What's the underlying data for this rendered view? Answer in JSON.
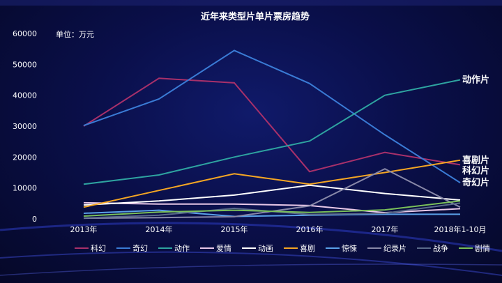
{
  "chart_data": {
    "type": "line",
    "title": "近年来类型片单片票房趋势",
    "unit_label": "单位：万元",
    "categories": [
      "2013年",
      "2014年",
      "2015年",
      "2016年",
      "2017年",
      "2018年1-10月"
    ],
    "ylim": [
      0,
      60000
    ],
    "yticks": [
      0,
      10000,
      20000,
      30000,
      40000,
      50000,
      60000
    ],
    "grid": false,
    "legend_position": "bottom",
    "series": [
      {
        "name": "科幻",
        "color": "#a8306a",
        "values": [
          30000,
          45500,
          44000,
          15300,
          21500,
          17500
        ]
      },
      {
        "name": "奇幻",
        "color": "#3a7bd5",
        "values": [
          30200,
          38800,
          54500,
          43800,
          27200,
          11700
        ]
      },
      {
        "name": "动作",
        "color": "#2ea3a0",
        "values": [
          11200,
          14200,
          20000,
          25200,
          40000,
          45000
        ]
      },
      {
        "name": "爱情",
        "color": "#e8c8e8",
        "values": [
          5200,
          4800,
          4800,
          4300,
          2000,
          3300
        ]
      },
      {
        "name": "动画",
        "color": "#ffffff",
        "values": [
          4500,
          5800,
          7700,
          10900,
          8200,
          6100
        ]
      },
      {
        "name": "喜剧",
        "color": "#f5a623",
        "values": [
          3800,
          9200,
          14600,
          11200,
          15000,
          19000
        ]
      },
      {
        "name": "惊悚",
        "color": "#5aa0e8",
        "values": [
          1800,
          2800,
          800,
          1200,
          1500,
          1500
        ]
      },
      {
        "name": "纪录片",
        "color": "#8888a8",
        "values": [
          200,
          400,
          700,
          4200,
          16200,
          3800
        ]
      },
      {
        "name": "战争",
        "color": "#5a6a8a",
        "values": [
          300,
          1200,
          3400,
          1400,
          1800,
          5100
        ]
      },
      {
        "name": "剧情",
        "color": "#7ac05a",
        "values": [
          900,
          2200,
          2800,
          2100,
          2900,
          5800
        ]
      }
    ],
    "end_labels": [
      {
        "text": "动作片",
        "series": "动作"
      },
      {
        "text": "喜剧片",
        "series": "喜剧"
      },
      {
        "text": "科幻片",
        "series": "科幻"
      },
      {
        "text": "奇幻片",
        "series": "奇幻"
      }
    ]
  }
}
